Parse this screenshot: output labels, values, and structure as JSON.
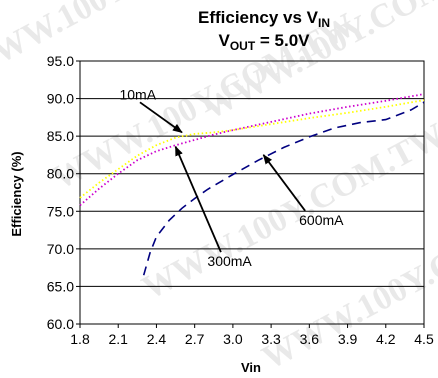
{
  "watermark": "WWW.100Y.COM.TW",
  "chart_data": {
    "type": "line",
    "title_line1": "Efficiency vs V",
    "title_line1_sub": "IN",
    "title_line2": "V",
    "title_line2_sub": "OUT",
    "title_line2_rest": " = 5.0V",
    "xlabel": "Vin",
    "ylabel": "Efficiency (%)",
    "xlim": [
      1.8,
      4.5
    ],
    "ylim": [
      60.0,
      95.0
    ],
    "xticks": [
      1.8,
      2.1,
      2.4,
      2.7,
      3.0,
      3.3,
      3.6,
      3.9,
      4.2,
      4.5
    ],
    "xtick_labels": [
      "1.8",
      "2.1",
      "2.4",
      "2.7",
      "3.0",
      "3.3",
      "3.6",
      "3.9",
      "4.2",
      "4.5"
    ],
    "yticks": [
      60,
      65,
      70,
      75,
      80,
      85,
      90,
      95
    ],
    "ytick_labels": [
      "60.0",
      "65.0",
      "70.0",
      "75.0",
      "80.0",
      "85.0",
      "90.0",
      "95.0"
    ],
    "grid": "horizontal",
    "series": [
      {
        "name": "10mA",
        "color": "#ffff00",
        "style": "dotted",
        "x": [
          1.8,
          1.95,
          2.1,
          2.25,
          2.4,
          2.55,
          2.7,
          2.85,
          3.0,
          3.3,
          3.6,
          3.9,
          4.2,
          4.5
        ],
        "y": [
          76.8,
          78.8,
          80.6,
          82.4,
          83.8,
          84.8,
          85.3,
          85.5,
          85.8,
          86.6,
          87.4,
          88.1,
          88.9,
          89.8
        ]
      },
      {
        "name": "300mA",
        "color": "#cc00cc",
        "style": "dotted",
        "x": [
          1.8,
          1.95,
          2.1,
          2.25,
          2.4,
          2.55,
          2.7,
          2.85,
          3.0,
          3.3,
          3.6,
          3.9,
          4.2,
          4.5
        ],
        "y": [
          75.8,
          78.0,
          80.0,
          81.8,
          83.0,
          83.8,
          84.5,
          85.2,
          85.8,
          86.9,
          88.0,
          88.9,
          89.7,
          90.6
        ]
      },
      {
        "name": "600mA",
        "color": "#000080",
        "style": "dashed",
        "x": [
          2.3,
          2.35,
          2.4,
          2.5,
          2.6,
          2.7,
          2.8,
          3.0,
          3.2,
          3.4,
          3.6,
          3.8,
          4.0,
          4.2,
          4.4,
          4.5
        ],
        "y": [
          66.5,
          69.5,
          71.6,
          73.8,
          75.4,
          76.7,
          77.9,
          79.9,
          81.8,
          83.5,
          84.9,
          86.1,
          86.8,
          87.2,
          88.5,
          89.5
        ]
      }
    ],
    "annotations": [
      {
        "text": "10mA",
        "x": 2.11,
        "y": 89.9,
        "arrow_to": [
          2.6,
          85.5
        ]
      },
      {
        "text": "300mA",
        "x": 2.8,
        "y": 67.7,
        "arrow_to": [
          2.55,
          83.6
        ]
      },
      {
        "text": "600mA",
        "x": 3.52,
        "y": 73.2,
        "arrow_to": [
          3.24,
          82.5
        ]
      }
    ]
  }
}
